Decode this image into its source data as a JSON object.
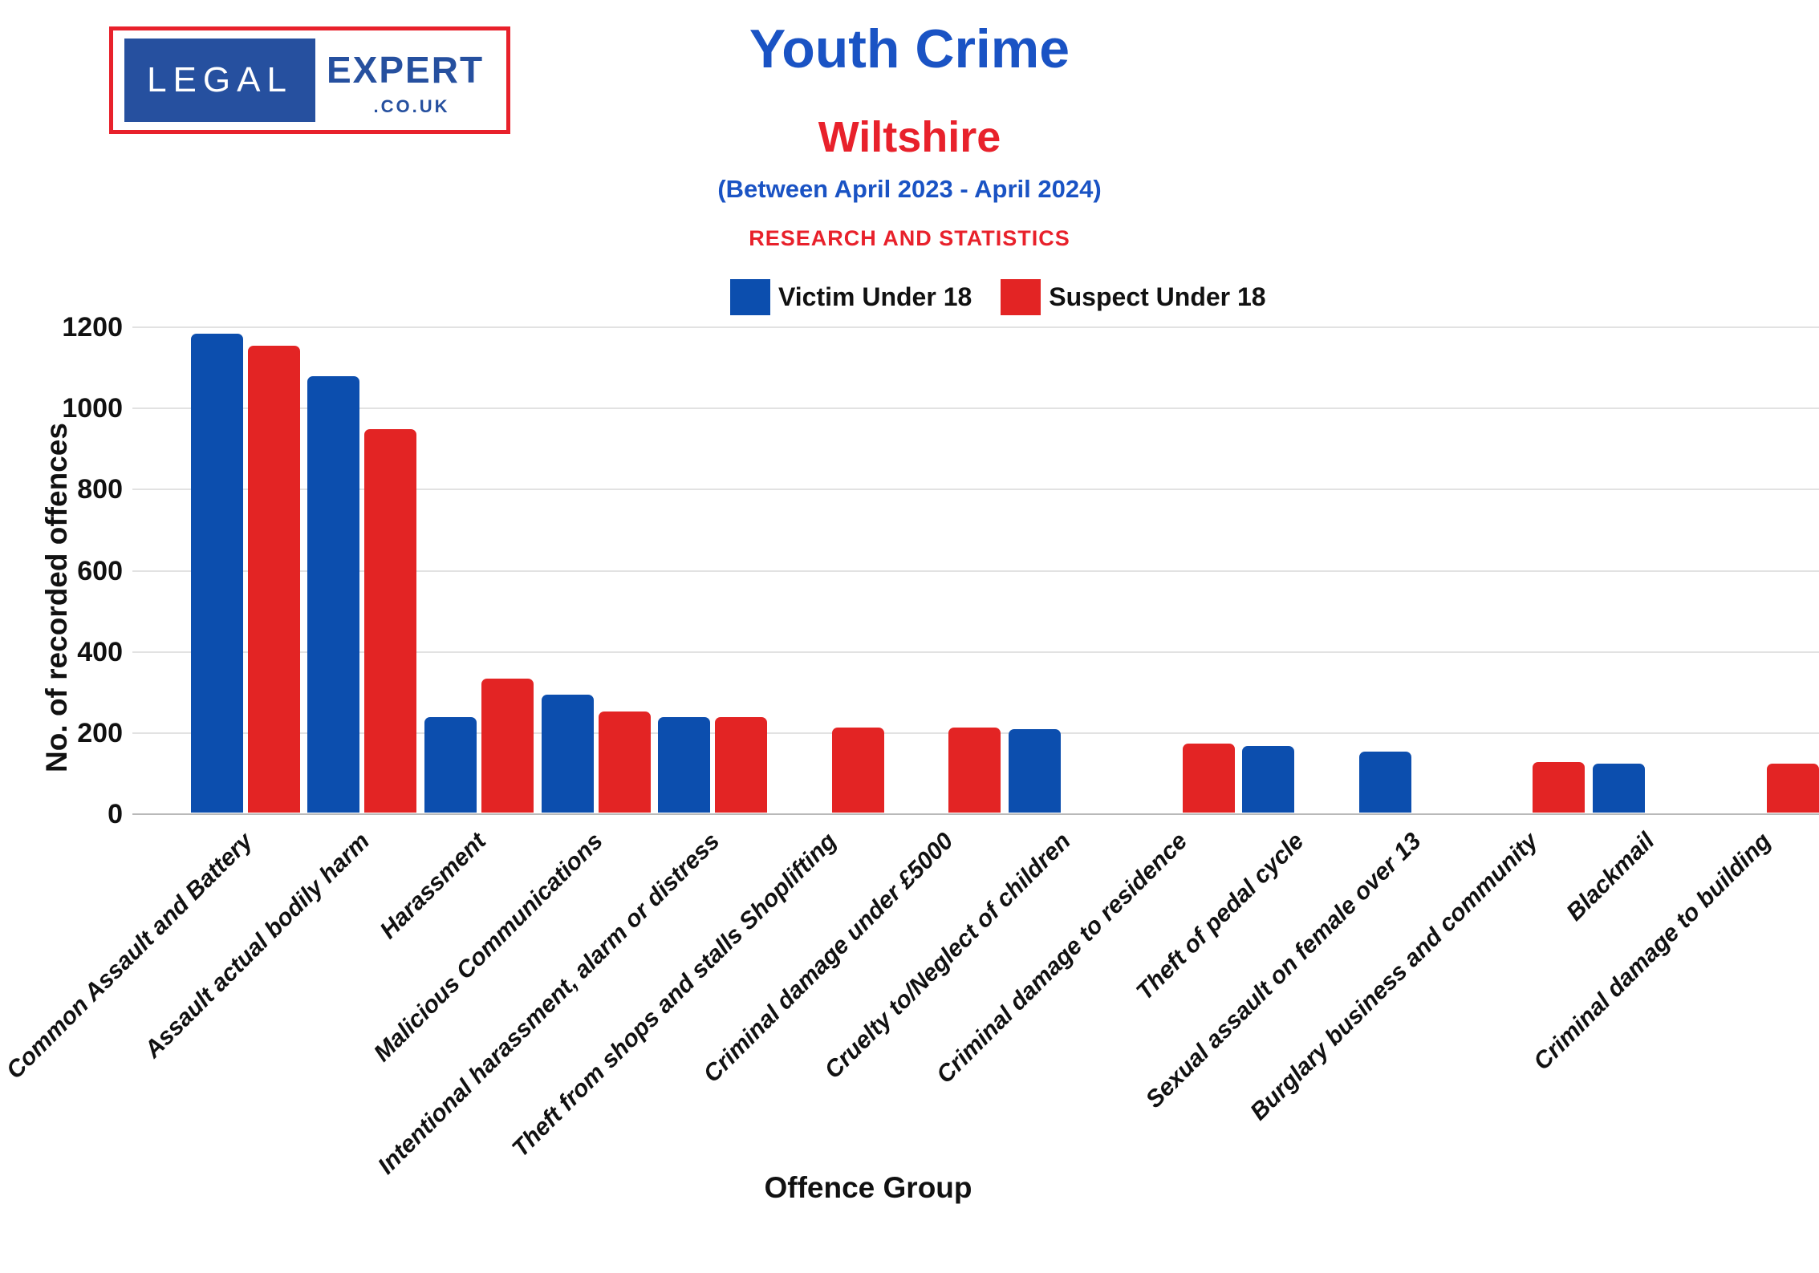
{
  "logo": {
    "brand_left": "LEGAL",
    "brand_right": "EXPERT",
    "brand_suffix": ".CO.UK"
  },
  "header": {
    "title": "Youth Crime",
    "subtitle": "Wiltshire",
    "period": "(Between April 2023 - April 2024)",
    "tagline": "RESEARCH AND STATISTICS"
  },
  "legend": [
    {
      "label": "Victim Under 18",
      "color": "#0c4eae"
    },
    {
      "label": "Suspect Under 18",
      "color": "#e32424"
    }
  ],
  "colors": {
    "victim_blue": "#0c4eae",
    "suspect_red": "#e32424",
    "title_blue": "#1a53c4",
    "accent_red": "#e8212b",
    "logo_blue": "#26509f",
    "gridline": "#e2e2e2"
  },
  "chart_data": {
    "type": "bar",
    "title": "Youth Crime - Wiltshire (Between April 2023 - April 2024)",
    "xlabel": "Offence Group",
    "ylabel": "No. of recorded offences",
    "ylim": [
      0,
      1200
    ],
    "yticks": [
      0,
      200,
      400,
      600,
      800,
      1000,
      1200
    ],
    "grid": true,
    "legend_position": "top",
    "categories": [
      "Common Assault and Battery",
      "Assault actual bodily harm",
      "Harassment",
      "Malicious Communications",
      "Intentional harassment, alarm or distress",
      "Theft from shops and stalls Shoplifting",
      "Criminal damage under £5000",
      "Cruelty to/Neglect of children",
      "Criminal damage to residence",
      "Theft of pedal cycle",
      "Sexual assault on female over 13",
      "Burglary business and community",
      "Blackmail",
      "Criminal damage to building"
    ],
    "series": [
      {
        "name": "Victim Under 18",
        "color": "#0c4eae",
        "values": [
          1180,
          1075,
          235,
          290,
          235,
          0,
          0,
          205,
          0,
          165,
          150,
          0,
          120,
          0
        ]
      },
      {
        "name": "Suspect Under 18",
        "color": "#e32424",
        "values": [
          1150,
          945,
          330,
          250,
          235,
          210,
          210,
          0,
          170,
          0,
          0,
          125,
          0,
          120
        ]
      }
    ]
  }
}
